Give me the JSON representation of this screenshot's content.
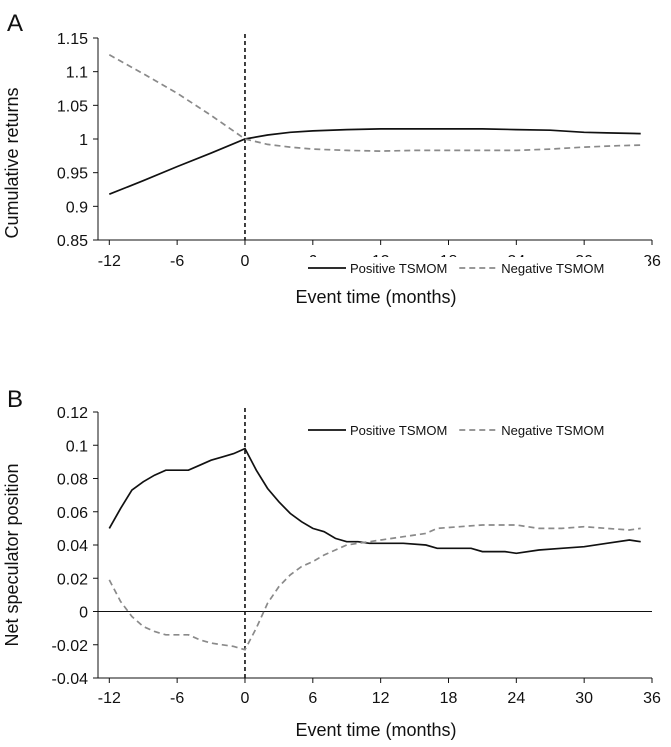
{
  "chart_data": [
    {
      "panel": "A",
      "type": "line",
      "xlabel": "Event time (months)",
      "ylabel": "Cumulative returns",
      "xlim": [
        -13,
        36
      ],
      "ylim": [
        0.85,
        1.15
      ],
      "xticks": [
        "-12",
        "-6",
        "0",
        "6",
        "12",
        "18",
        "24",
        "30",
        "36"
      ],
      "xtick_values": [
        -12,
        -6,
        0,
        6,
        12,
        18,
        24,
        30,
        36
      ],
      "yticks": [
        "0.85",
        "0.9",
        "0.95",
        "1",
        "1.05",
        "1.1",
        "1.15"
      ],
      "ytick_values": [
        0.85,
        0.9,
        0.95,
        1,
        1.05,
        1.1,
        1.15
      ],
      "event_line_x": 0,
      "legend_position": "bottom-right",
      "series": [
        {
          "name": "Positive TSMOM",
          "color": "#111111",
          "dash": "solid",
          "points": [
            [
              -12,
              0.918
            ],
            [
              -9,
              0.938
            ],
            [
              -6,
              0.959
            ],
            [
              -3,
              0.979
            ],
            [
              0,
              1.0
            ],
            [
              2,
              1.006
            ],
            [
              4,
              1.01
            ],
            [
              6,
              1.012
            ],
            [
              9,
              1.014
            ],
            [
              12,
              1.015
            ],
            [
              15,
              1.015
            ],
            [
              18,
              1.015
            ],
            [
              21,
              1.015
            ],
            [
              24,
              1.014
            ],
            [
              27,
              1.013
            ],
            [
              30,
              1.01
            ],
            [
              32,
              1.009
            ],
            [
              35,
              1.008
            ]
          ]
        },
        {
          "name": "Negative TSMOM",
          "color": "#8a8a8a",
          "dash": "dashed",
          "points": [
            [
              -12,
              1.125
            ],
            [
              -9,
              1.097
            ],
            [
              -6,
              1.068
            ],
            [
              -3,
              1.035
            ],
            [
              0,
              1.0
            ],
            [
              2,
              0.992
            ],
            [
              4,
              0.988
            ],
            [
              6,
              0.985
            ],
            [
              9,
              0.983
            ],
            [
              12,
              0.982
            ],
            [
              15,
              0.983
            ],
            [
              18,
              0.983
            ],
            [
              21,
              0.983
            ],
            [
              24,
              0.983
            ],
            [
              27,
              0.985
            ],
            [
              30,
              0.988
            ],
            [
              33,
              0.99
            ],
            [
              35,
              0.991
            ]
          ]
        }
      ]
    },
    {
      "panel": "B",
      "type": "line",
      "xlabel": "Event time (months)",
      "ylabel": "Net speculator position",
      "xlim": [
        -13,
        36
      ],
      "ylim": [
        -0.04,
        0.12
      ],
      "xticks": [
        "-12",
        "-6",
        "0",
        "6",
        "12",
        "18",
        "24",
        "30",
        "36"
      ],
      "xtick_values": [
        -12,
        -6,
        0,
        6,
        12,
        18,
        24,
        30,
        36
      ],
      "yticks": [
        "-0.04",
        "-0.02",
        "0",
        "0.02",
        "0.04",
        "0.06",
        "0.08",
        "0.1",
        "0.12"
      ],
      "ytick_values": [
        -0.04,
        -0.02,
        0,
        0.02,
        0.04,
        0.06,
        0.08,
        0.1,
        0.12
      ],
      "event_line_x": 0,
      "zero_line": true,
      "legend_position": "top-right",
      "series": [
        {
          "name": "Positive TSMOM",
          "color": "#111111",
          "dash": "solid",
          "points": [
            [
              -12,
              0.05
            ],
            [
              -11,
              0.062
            ],
            [
              -10,
              0.073
            ],
            [
              -9,
              0.078
            ],
            [
              -8,
              0.082
            ],
            [
              -7,
              0.085
            ],
            [
              -6,
              0.085
            ],
            [
              -5,
              0.085
            ],
            [
              -4,
              0.088
            ],
            [
              -3,
              0.091
            ],
            [
              -2,
              0.093
            ],
            [
              -1,
              0.095
            ],
            [
              0,
              0.098
            ],
            [
              1,
              0.085
            ],
            [
              2,
              0.074
            ],
            [
              3,
              0.066
            ],
            [
              4,
              0.059
            ],
            [
              5,
              0.054
            ],
            [
              6,
              0.05
            ],
            [
              7,
              0.048
            ],
            [
              8,
              0.044
            ],
            [
              9,
              0.042
            ],
            [
              10,
              0.042
            ],
            [
              11,
              0.041
            ],
            [
              12,
              0.041
            ],
            [
              14,
              0.041
            ],
            [
              16,
              0.04
            ],
            [
              17,
              0.038
            ],
            [
              19,
              0.038
            ],
            [
              20,
              0.038
            ],
            [
              21,
              0.036
            ],
            [
              23,
              0.036
            ],
            [
              24,
              0.035
            ],
            [
              26,
              0.037
            ],
            [
              28,
              0.038
            ],
            [
              30,
              0.039
            ],
            [
              32,
              0.041
            ],
            [
              34,
              0.043
            ],
            [
              35,
              0.042
            ]
          ]
        },
        {
          "name": "Negative TSMOM",
          "color": "#8a8a8a",
          "dash": "dashed",
          "points": [
            [
              -12,
              0.019
            ],
            [
              -11,
              0.006
            ],
            [
              -10,
              -0.003
            ],
            [
              -9,
              -0.009
            ],
            [
              -8,
              -0.012
            ],
            [
              -7,
              -0.014
            ],
            [
              -6,
              -0.014
            ],
            [
              -5,
              -0.014
            ],
            [
              -4,
              -0.017
            ],
            [
              -3,
              -0.019
            ],
            [
              -2,
              -0.02
            ],
            [
              -1,
              -0.021
            ],
            [
              0,
              -0.023
            ],
            [
              1,
              -0.01
            ],
            [
              2,
              0.005
            ],
            [
              3,
              0.015
            ],
            [
              4,
              0.022
            ],
            [
              5,
              0.027
            ],
            [
              6,
              0.03
            ],
            [
              7,
              0.034
            ],
            [
              8,
              0.037
            ],
            [
              9,
              0.04
            ],
            [
              10,
              0.041
            ],
            [
              11,
              0.042
            ],
            [
              12,
              0.043
            ],
            [
              14,
              0.045
            ],
            [
              16,
              0.047
            ],
            [
              17,
              0.05
            ],
            [
              19,
              0.051
            ],
            [
              21,
              0.052
            ],
            [
              22,
              0.052
            ],
            [
              24,
              0.052
            ],
            [
              26,
              0.05
            ],
            [
              28,
              0.05
            ],
            [
              30,
              0.051
            ],
            [
              32,
              0.05
            ],
            [
              34,
              0.049
            ],
            [
              35,
              0.05
            ]
          ]
        }
      ]
    }
  ]
}
